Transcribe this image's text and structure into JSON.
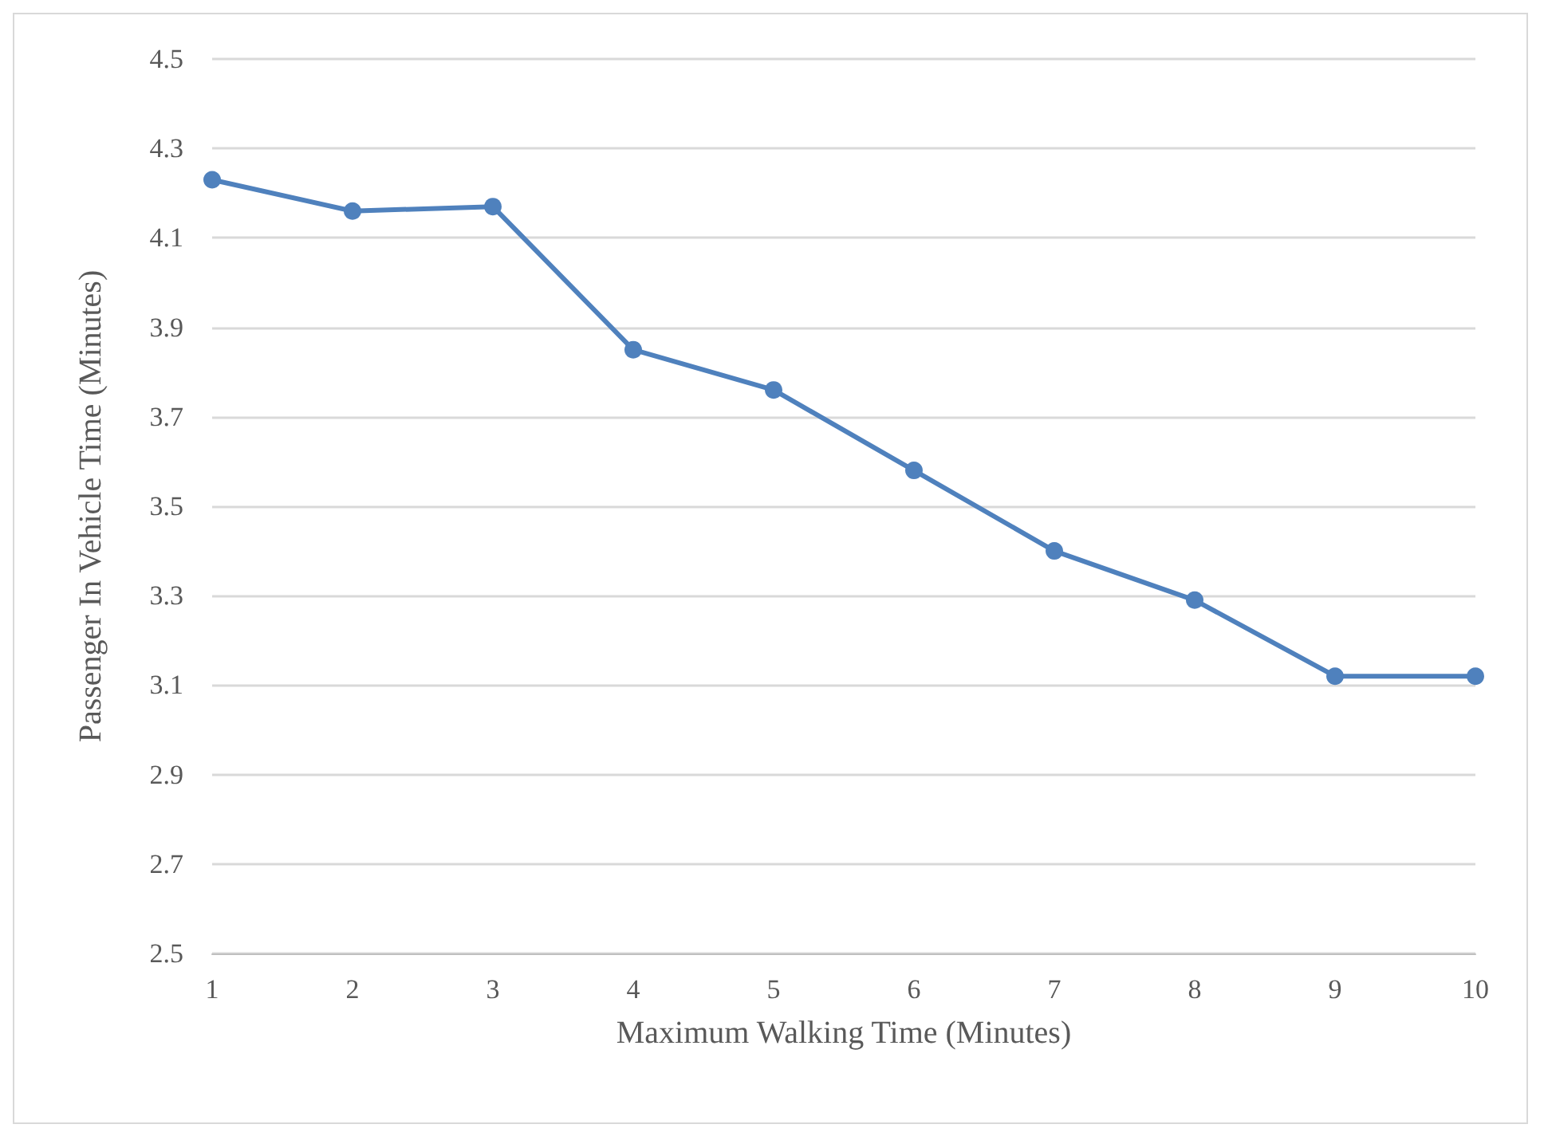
{
  "chart_data": {
    "type": "line",
    "xlabel": "Maximum Walking Time (Minutes)",
    "ylabel": "Passenger In Vehicle Time (Minutes)",
    "x": [
      1,
      2,
      3,
      4,
      5,
      6,
      7,
      8,
      9,
      10
    ],
    "series": [
      {
        "color": "#4f81bd",
        "values": [
          4.23,
          4.16,
          4.17,
          3.85,
          3.76,
          3.58,
          3.4,
          3.29,
          3.12,
          3.12
        ]
      }
    ],
    "xlim": [
      1,
      10
    ],
    "xticks": [
      1,
      2,
      3,
      4,
      5,
      6,
      7,
      8,
      9,
      10
    ],
    "ylim": [
      2.5,
      4.5
    ],
    "yticks": [
      2.5,
      2.7,
      2.9,
      3.1,
      3.3,
      3.5,
      3.7,
      3.9,
      4.1,
      4.3,
      4.5
    ],
    "grid": "y",
    "marker": "circle",
    "line_style": "solid"
  }
}
